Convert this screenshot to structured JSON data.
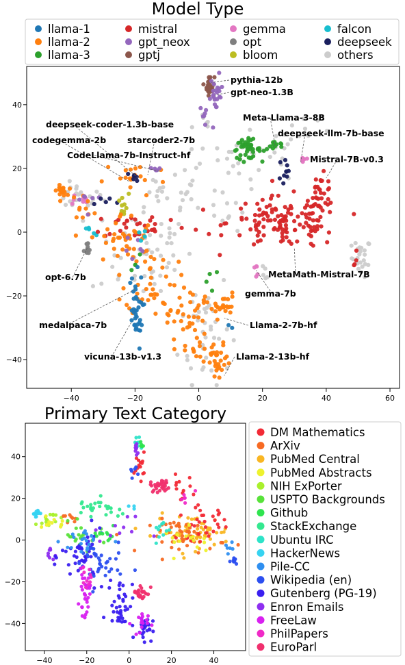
{
  "chart_data": [
    {
      "type": "scatter",
      "title": "Model Type",
      "xlim": [
        -54,
        63
      ],
      "ylim": [
        -49,
        52
      ],
      "xticks": [
        -40,
        -20,
        0,
        20,
        40,
        60
      ],
      "yticks": [
        -40,
        -20,
        0,
        20,
        40
      ],
      "legend_placement": "top",
      "legend": [
        {
          "name": "llama-1",
          "color": "#1f77b4"
        },
        {
          "name": "mistral",
          "color": "#d62728"
        },
        {
          "name": "gemma",
          "color": "#e377c2"
        },
        {
          "name": "falcon",
          "color": "#17becf"
        },
        {
          "name": "llama-2",
          "color": "#ff7f0e"
        },
        {
          "name": "gpt_neox",
          "color": "#9467bd"
        },
        {
          "name": "opt",
          "color": "#7f7f7f"
        },
        {
          "name": "deepseek",
          "color": "#1a1f5e"
        },
        {
          "name": "llama-3",
          "color": "#2ca02c"
        },
        {
          "name": "gptj",
          "color": "#8c564b"
        },
        {
          "name": "bloom",
          "color": "#bcbd22"
        },
        {
          "name": "others",
          "color": "#cccccc"
        }
      ],
      "annotations": [
        {
          "text": "pythia-12b",
          "x": 4,
          "y": 47
        },
        {
          "text": "gpt-neo-1.3B",
          "x": 5,
          "y": 43
        },
        {
          "text": "Meta-Llama-3-8B",
          "x": 24,
          "y": 27
        },
        {
          "text": "deepseek-llm-7b-base",
          "x": 32,
          "y": 22
        },
        {
          "text": "deepseek-coder-1.3b-base",
          "x": -19,
          "y": 17
        },
        {
          "text": "starcoder2-7b",
          "x": -16,
          "y": 18
        },
        {
          "text": "codegemma-2b",
          "x": -22,
          "y": 16
        },
        {
          "text": "CodeLlama-7b-Instruct-hf",
          "x": -12,
          "y": 19
        },
        {
          "text": "Mistral-7B-v0.3",
          "x": 40,
          "y": 17
        },
        {
          "text": "opt-6.7b",
          "x": -35,
          "y": -5
        },
        {
          "text": "MetaMath-Mistral-7B",
          "x": 30,
          "y": -5
        },
        {
          "text": "gemma-7b",
          "x": 18,
          "y": -12
        },
        {
          "text": "medalpaca-7b",
          "x": -20,
          "y": -18
        },
        {
          "text": "Llama-2-7b-hf",
          "x": 8,
          "y": -27
        },
        {
          "text": "vicuna-13b-v1.3",
          "x": -21,
          "y": -28
        },
        {
          "text": "Llama-2-13b-hf",
          "x": 8,
          "y": -45
        }
      ],
      "clusters": [
        {
          "series": "gptj",
          "cx": 3.5,
          "cy": 46,
          "sx": 0.7,
          "sy": 1.5,
          "n": 30
        },
        {
          "series": "gpt_neox",
          "cx": 5.5,
          "cy": 43,
          "sx": 1.0,
          "sy": 3.0,
          "n": 22
        },
        {
          "series": "gpt_neox",
          "cx": 2,
          "cy": 37,
          "sx": 0.8,
          "sy": 1.5,
          "n": 6
        },
        {
          "series": "others",
          "cx": 2,
          "cy": 34,
          "sx": 2,
          "sy": 2,
          "n": 6
        },
        {
          "series": "llama-3",
          "cx": 15,
          "cy": 26,
          "sx": 2.2,
          "sy": 1.5,
          "n": 40
        },
        {
          "series": "llama-3",
          "cx": 24,
          "cy": 27,
          "sx": 1.8,
          "sy": 0.8,
          "n": 12
        },
        {
          "series": "others",
          "cx": 19,
          "cy": 24,
          "sx": 8,
          "sy": 4,
          "n": 30
        },
        {
          "series": "deepseek",
          "cx": 27,
          "cy": 19,
          "sx": 1.0,
          "sy": 3.5,
          "n": 10
        },
        {
          "series": "gemma",
          "cx": 33,
          "cy": 23,
          "sx": 0.8,
          "sy": 0.8,
          "n": 6
        },
        {
          "series": "mistral",
          "cx": 27,
          "cy": 3,
          "sx": 9,
          "sy": 4,
          "n": 130
        },
        {
          "series": "mistral",
          "cx": 38,
          "cy": 12,
          "sx": 2,
          "sy": 3,
          "n": 30
        },
        {
          "series": "others",
          "cx": 51,
          "cy": -8,
          "sx": 1.5,
          "sy": 3,
          "n": 25
        },
        {
          "series": "mistral",
          "cx": 49,
          "cy": -8,
          "sx": 1,
          "sy": 2,
          "n": 4
        },
        {
          "series": "gemma",
          "cx": 18,
          "cy": -12,
          "sx": 0.4,
          "sy": 0.8,
          "n": 5
        },
        {
          "series": "others",
          "cx": 20,
          "cy": -14,
          "sx": 1,
          "sy": 2,
          "n": 5
        },
        {
          "series": "llama-2",
          "cx": -43,
          "cy": 13,
          "sx": 0.8,
          "sy": 0.8,
          "n": 20
        },
        {
          "series": "others",
          "cx": -38,
          "cy": 11,
          "sx": 4,
          "sy": 2,
          "n": 25
        },
        {
          "series": "gemma",
          "cx": -38,
          "cy": 10,
          "sx": 2,
          "sy": 1,
          "n": 8
        },
        {
          "series": "llama-2",
          "cx": -36,
          "cy": 8,
          "sx": 2,
          "sy": 2,
          "n": 10
        },
        {
          "series": "gpt_neox",
          "cx": -36,
          "cy": 10,
          "sx": 2,
          "sy": 2,
          "n": 6
        },
        {
          "series": "deepseek",
          "cx": -30,
          "cy": 10,
          "sx": 3,
          "sy": 1,
          "n": 5
        },
        {
          "series": "bloom",
          "cx": -24,
          "cy": 8,
          "sx": 1,
          "sy": 2,
          "n": 10
        },
        {
          "series": "opt",
          "cx": -35,
          "cy": -6,
          "sx": 0.5,
          "sy": 1.5,
          "n": 12
        },
        {
          "series": "falcon",
          "cx": -34,
          "cy": 0,
          "sx": 1,
          "sy": 1,
          "n": 5
        },
        {
          "series": "llama-2",
          "cx": -20,
          "cy": 17,
          "sx": 5,
          "sy": 3,
          "n": 18
        },
        {
          "series": "deepseek",
          "cx": -20,
          "cy": 17,
          "sx": 2,
          "sy": 1.5,
          "n": 6
        },
        {
          "series": "gpt_neox",
          "cx": -14,
          "cy": 20,
          "sx": 1,
          "sy": 1,
          "n": 5
        },
        {
          "series": "others",
          "cx": -12,
          "cy": 12,
          "sx": 2,
          "sy": 2,
          "n": 10
        },
        {
          "series": "mistral",
          "cx": -18,
          "cy": 2,
          "sx": 8,
          "sy": 2,
          "n": 30
        },
        {
          "series": "llama-2",
          "cx": -24,
          "cy": -2,
          "sx": 5,
          "sy": 4,
          "n": 35
        },
        {
          "series": "llama-2",
          "cx": -15,
          "cy": -14,
          "sx": 4,
          "sy": 6,
          "n": 40
        },
        {
          "series": "others",
          "cx": -18,
          "cy": -5,
          "sx": 8,
          "sy": 8,
          "n": 50
        },
        {
          "series": "gpt_neox",
          "cx": -22,
          "cy": -5,
          "sx": 3,
          "sy": 3,
          "n": 6
        },
        {
          "series": "falcon",
          "cx": -20,
          "cy": -3,
          "sx": 3,
          "sy": 3,
          "n": 4
        },
        {
          "series": "llama-3",
          "cx": -18,
          "cy": -10,
          "sx": 3,
          "sy": 3,
          "n": 4
        },
        {
          "series": "llama-1",
          "cx": -20,
          "cy": -25,
          "sx": 1.2,
          "sy": 6,
          "n": 35
        },
        {
          "series": "llama-2",
          "cx": -4,
          "cy": -28,
          "sx": 3,
          "sy": 6,
          "n": 45
        },
        {
          "series": "llama-2",
          "cx": 7,
          "cy": -23,
          "sx": 2.5,
          "sy": 2,
          "n": 25
        },
        {
          "series": "llama-2",
          "cx": 6,
          "cy": -41,
          "sx": 2,
          "sy": 3,
          "n": 30
        },
        {
          "series": "others",
          "cx": 2,
          "cy": -30,
          "sx": 4,
          "sy": 10,
          "n": 40
        },
        {
          "series": "llama-3",
          "cx": 5,
          "cy": -16,
          "sx": 2,
          "sy": 3,
          "n": 4
        },
        {
          "series": "llama-1",
          "cx": 10,
          "cy": -30,
          "sx": 1,
          "sy": 1,
          "n": 2
        },
        {
          "series": "others",
          "cx": -2,
          "cy": 17,
          "sx": 4,
          "sy": 4,
          "n": 10
        },
        {
          "series": "others",
          "cx": 10,
          "cy": 5,
          "sx": 3,
          "sy": 3,
          "n": 6
        },
        {
          "series": "others",
          "cx": 33,
          "cy": 33,
          "sx": 4,
          "sy": 3,
          "n": 8
        },
        {
          "series": "others",
          "cx": -5,
          "cy": 10,
          "sx": 6,
          "sy": 3,
          "n": 12
        }
      ]
    },
    {
      "type": "scatter",
      "title": "Primary Text Category",
      "xlim": [
        -49,
        55
      ],
      "ylim": [
        -53,
        56
      ],
      "xticks": [
        -40,
        -20,
        0,
        20,
        40
      ],
      "yticks": [
        -40,
        -20,
        0,
        20,
        40
      ],
      "legend_placement": "right",
      "legend": [
        {
          "name": "DM Mathematics",
          "color": "#f22a35"
        },
        {
          "name": "ArXiv",
          "color": "#f76a23"
        },
        {
          "name": "PubMed Central",
          "color": "#f9b623"
        },
        {
          "name": "PubMed Abstracts",
          "color": "#eef22e"
        },
        {
          "name": "NIH ExPorter",
          "color": "#a9f02c"
        },
        {
          "name": "USPTO Backgrounds",
          "color": "#58e23a"
        },
        {
          "name": "Github",
          "color": "#2fe44f"
        },
        {
          "name": "StackExchange",
          "color": "#34e88f"
        },
        {
          "name": "Ubuntu IRC",
          "color": "#2ee3c8"
        },
        {
          "name": "HackerNews",
          "color": "#36d3f1"
        },
        {
          "name": "Pile-CC",
          "color": "#2f8ff0"
        },
        {
          "name": "Wikipedia (en)",
          "color": "#2c4ff0"
        },
        {
          "name": "Gutenberg (PG-19)",
          "color": "#3a1ff0"
        },
        {
          "name": "Enron Emails",
          "color": "#8e2ef0"
        },
        {
          "name": "FreeLaw",
          "color": "#d820f0"
        },
        {
          "name": "PhilPapers",
          "color": "#f02ac7"
        },
        {
          "name": "EuroParl",
          "color": "#f0306e"
        }
      ],
      "clusters": [
        {
          "series": "Ubuntu IRC",
          "cx": 4,
          "cy": 46,
          "sx": 0.8,
          "sy": 2,
          "n": 10
        },
        {
          "series": "Enron Emails",
          "cx": 3.5,
          "cy": 44,
          "sx": 0.6,
          "sy": 2,
          "n": 10
        },
        {
          "series": "Github",
          "cx": 6,
          "cy": 46,
          "sx": 0.5,
          "sy": 1,
          "n": 5
        },
        {
          "series": "DM Mathematics",
          "cx": 5,
          "cy": 36,
          "sx": 1.2,
          "sy": 3,
          "n": 14
        },
        {
          "series": "Wikipedia (en)",
          "cx": 2,
          "cy": 33,
          "sx": 1,
          "sy": 1.5,
          "n": 6
        },
        {
          "series": "EuroParl",
          "cx": 15,
          "cy": 26,
          "sx": 2.5,
          "sy": 1.5,
          "n": 30
        },
        {
          "series": "DM Mathematics",
          "cx": 24,
          "cy": 25,
          "sx": 3,
          "sy": 3,
          "n": 12
        },
        {
          "series": "PhilPapers",
          "cx": 26,
          "cy": 20,
          "sx": 2,
          "sy": 3,
          "n": 6
        },
        {
          "series": "PubMed Central",
          "cx": 30,
          "cy": 4,
          "sx": 9,
          "sy": 4,
          "n": 60
        },
        {
          "series": "ArXiv",
          "cx": 28,
          "cy": 2,
          "sx": 9,
          "sy": 4,
          "n": 50
        },
        {
          "series": "DM Mathematics",
          "cx": 35,
          "cy": 8,
          "sx": 6,
          "sy": 4,
          "n": 30
        },
        {
          "series": "PubMed Abstracts",
          "cx": 30,
          "cy": 0,
          "sx": 7,
          "sy": 3,
          "n": 15
        },
        {
          "series": "Ubuntu IRC",
          "cx": 15,
          "cy": 5,
          "sx": 2,
          "sy": 3,
          "n": 10
        },
        {
          "series": "Wikipedia (en)",
          "cx": 50,
          "cy": -10,
          "sx": 1,
          "sy": 1,
          "n": 10
        },
        {
          "series": "Pile-CC",
          "cx": 47,
          "cy": -5,
          "sx": 1,
          "sy": 3,
          "n": 6
        },
        {
          "series": "HackerNews",
          "cx": -44,
          "cy": 13,
          "sx": 0.8,
          "sy": 0.8,
          "n": 14
        },
        {
          "series": "NIH ExPorter",
          "cx": -38,
          "cy": 10,
          "sx": 3,
          "sy": 2,
          "n": 15
        },
        {
          "series": "PubMed Abstracts",
          "cx": -36,
          "cy": 7,
          "sx": 3,
          "sy": 2,
          "n": 10
        },
        {
          "series": "Enron Emails",
          "cx": -37,
          "cy": -6,
          "sx": 0.8,
          "sy": 2,
          "n": 8
        },
        {
          "series": "ArXiv",
          "cx": -28,
          "cy": 10,
          "sx": 3,
          "sy": 1.5,
          "n": 8
        },
        {
          "series": "StackExchange",
          "cx": -18,
          "cy": 16,
          "sx": 4,
          "sy": 2,
          "n": 18
        },
        {
          "series": "StackExchange",
          "cx": -8,
          "cy": 14,
          "sx": 3,
          "sy": 2,
          "n": 8
        },
        {
          "series": "USPTO Backgrounds",
          "cx": -22,
          "cy": 2,
          "sx": 6,
          "sy": 3,
          "n": 20
        },
        {
          "series": "Gutenberg (PG-19)",
          "cx": -22,
          "cy": -8,
          "sx": 5,
          "sy": 6,
          "n": 40
        },
        {
          "series": "Wikipedia (en)",
          "cx": -15,
          "cy": -12,
          "sx": 6,
          "sy": 6,
          "n": 40
        },
        {
          "series": "Pile-CC",
          "cx": -20,
          "cy": 0,
          "sx": 6,
          "sy": 4,
          "n": 20
        },
        {
          "series": "FreeLaw",
          "cx": -21,
          "cy": -26,
          "sx": 1.2,
          "sy": 5,
          "n": 30
        },
        {
          "series": "PhilPapers",
          "cx": -20,
          "cy": -20,
          "sx": 1.5,
          "sy": 4,
          "n": 10
        },
        {
          "series": "Gutenberg (PG-19)",
          "cx": -4,
          "cy": -30,
          "sx": 3,
          "sy": 6,
          "n": 40
        },
        {
          "series": "EuroParl",
          "cx": 6,
          "cy": -25,
          "sx": 2,
          "sy": 2,
          "n": 25
        },
        {
          "series": "Gutenberg (PG-19)",
          "cx": 7,
          "cy": -42,
          "sx": 2,
          "sy": 3,
          "n": 25
        },
        {
          "series": "FreeLaw",
          "cx": 5,
          "cy": -40,
          "sx": 2,
          "sy": 3,
          "n": 15
        },
        {
          "series": "Github",
          "cx": -12,
          "cy": 3,
          "sx": 4,
          "sy": 3,
          "n": 10
        },
        {
          "series": "Enron Emails",
          "cx": -5,
          "cy": 5,
          "sx": 6,
          "sy": 3,
          "n": 10
        },
        {
          "series": "HackerNews",
          "cx": 1,
          "cy": 15,
          "sx": 1,
          "sy": 1,
          "n": 3
        }
      ]
    }
  ]
}
